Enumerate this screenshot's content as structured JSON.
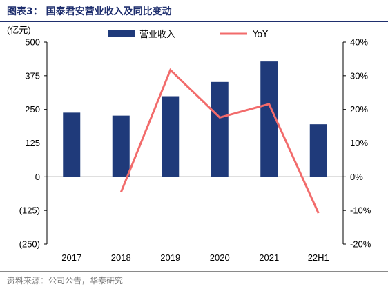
{
  "header": {
    "title": "图表3：  国泰君安营业收入及同比变动"
  },
  "footer": {
    "source": "资料来源：公司公告，华泰研究"
  },
  "chart_data": {
    "type": "bar",
    "categories": [
      "2017",
      "2018",
      "2019",
      "2020",
      "2021",
      "22H1"
    ],
    "left_unit": "(亿元)",
    "ylim": [
      -250,
      500
    ],
    "y_ticks": [
      "500",
      "375",
      "250",
      "125",
      "0",
      "(125)",
      "(250)"
    ],
    "y_tick_values": [
      500,
      375,
      250,
      125,
      0,
      -125,
      -250
    ],
    "y2lim": [
      -0.2,
      0.4
    ],
    "y2_ticks": [
      "40%",
      "30%",
      "20%",
      "10%",
      "0%",
      "-10%",
      "-20%"
    ],
    "y2_tick_values": [
      0.4,
      0.3,
      0.2,
      0.1,
      0.0,
      -0.1,
      -0.2
    ],
    "legend_position": "top",
    "grid": false,
    "series": [
      {
        "name": "营业收入",
        "type": "bar",
        "axis": "left",
        "color": "#1f3a7a",
        "values": [
          238,
          227,
          299,
          352,
          428,
          195
        ]
      },
      {
        "name": "YoY",
        "type": "line",
        "axis": "right",
        "color": "#f26b6b",
        "values": [
          null,
          -0.046,
          0.317,
          0.176,
          0.216,
          -0.108
        ]
      }
    ]
  }
}
